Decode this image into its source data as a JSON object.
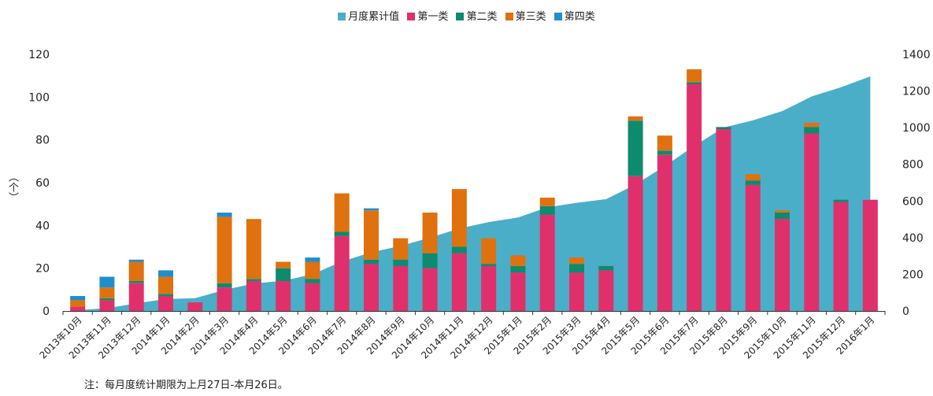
{
  "chart_data": {
    "type": "bar",
    "categories": [
      "2013年10月",
      "2013年11月",
      "2013年12月",
      "2014年1月",
      "2014年2月",
      "2014年3月",
      "2014年4月",
      "2014年5月",
      "2014年6月",
      "2014年7月",
      "2014年8月",
      "2014年9月",
      "2014年10月",
      "2014年11月",
      "2014年12月",
      "2015年1月",
      "2015年2月",
      "2015年3月",
      "2015年4月",
      "2015年5月",
      "2015年6月",
      "2015年7月",
      "2015年8月",
      "2015年9月",
      "2015年10月",
      "2015年11月",
      "2015年12月",
      "2016年1月"
    ],
    "series": [
      {
        "name": "第一类",
        "color": "#e0306c",
        "values": [
          2,
          5,
          13,
          7,
          4,
          11,
          14,
          14,
          13,
          35,
          22,
          21,
          20,
          27,
          21,
          18,
          45,
          18,
          19,
          63,
          73,
          106,
          85,
          59,
          43,
          83,
          51,
          52
        ]
      },
      {
        "name": "第二类",
        "color": "#0e8a6e",
        "values": [
          0,
          1,
          1,
          1,
          0,
          2,
          1,
          6,
          2,
          2,
          2,
          3,
          7,
          3,
          1,
          3,
          4,
          4,
          2,
          26,
          2,
          1,
          1,
          2,
          3,
          3,
          1,
          0
        ]
      },
      {
        "name": "第三类",
        "color": "#e0710f",
        "values": [
          3,
          5,
          9,
          8,
          0,
          31,
          28,
          3,
          8,
          18,
          23,
          10,
          19,
          27,
          12,
          5,
          4,
          3,
          0,
          2,
          7,
          6,
          0,
          3,
          1,
          2,
          0,
          0
        ]
      },
      {
        "name": "第四类",
        "color": "#1f8fcc",
        "values": [
          2,
          5,
          1,
          3,
          0,
          2,
          0,
          0,
          2,
          0,
          1,
          0,
          0,
          0,
          0,
          0,
          0,
          0,
          0,
          0,
          0,
          0,
          0,
          0,
          0,
          0,
          0,
          0
        ]
      }
    ],
    "area_series": {
      "name": "月度累计值",
      "color": "#4aaec8",
      "axis": "right",
      "values": [
        5,
        15,
        42,
        65,
        70,
        115,
        150,
        165,
        200,
        270,
        320,
        355,
        400,
        450,
        485,
        510,
        565,
        590,
        610,
        690,
        790,
        900,
        1000,
        1040,
        1090,
        1170,
        1220,
        1280
      ]
    },
    "ylim_left": [
      0,
      120
    ],
    "ylim_right": [
      0,
      1400
    ],
    "yticks_left": [
      "0",
      "20",
      "40",
      "60",
      "80",
      "100",
      "120"
    ],
    "yticks_right": [
      "0",
      "200",
      "400",
      "600",
      "800",
      "1000",
      "1200",
      "1400"
    ],
    "ylabel": "（个）",
    "legend_position": "top-center",
    "grid": false
  },
  "note": "注：每月度统计期限为上月27日-本月26日。"
}
